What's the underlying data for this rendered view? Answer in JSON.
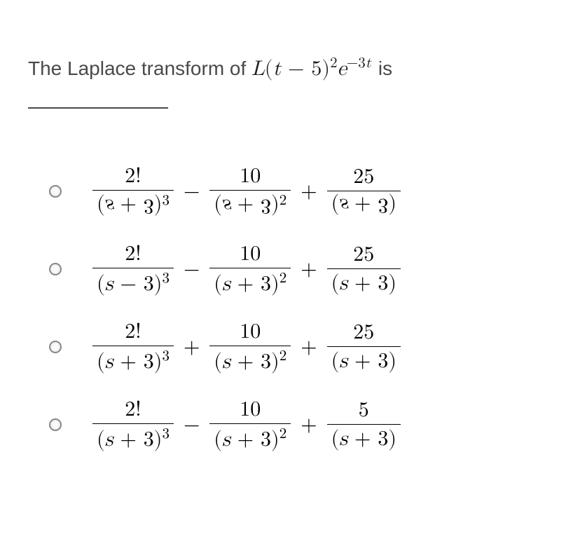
{
  "question": {
    "prefix": "The  Laplace transform of ",
    "math_L": "L",
    "math_open": "(",
    "math_t": "t",
    "math_minus": " − ",
    "math_five": "5",
    "math_close": ")",
    "math_sq": "2",
    "math_e": "e",
    "math_exp_neg": "−3",
    "math_exp_t": "t",
    "suffix": "   is"
  },
  "options": [
    {
      "terms": [
        {
          "num": "2!",
          "den_flip": true,
          "den_var": "s",
          "den_op": "+",
          "den_c": "3",
          "den_close": ")",
          "den_exp": "3"
        },
        {
          "op": "−"
        },
        {
          "num": "10",
          "den_flip": true,
          "den_var": "s",
          "den_op": "+",
          "den_c": "3",
          "den_close": ")",
          "den_exp": "2"
        },
        {
          "op": "+"
        },
        {
          "num": "25",
          "den_flip": true,
          "den_var": "s",
          "den_op": "+",
          "den_c": "3",
          "den_close": ")",
          "den_exp": ""
        }
      ]
    },
    {
      "terms": [
        {
          "num": "2!",
          "den_var": "s",
          "den_op": "−",
          "den_c": "3",
          "den_close": ")",
          "den_exp": "3"
        },
        {
          "op": "−"
        },
        {
          "num": "10",
          "den_var": "s",
          "den_op": "+",
          "den_c": "3",
          "den_close": ")",
          "den_exp": "2"
        },
        {
          "op": "+"
        },
        {
          "num": "25",
          "den_var": "s",
          "den_op": "+",
          "den_c": "3",
          "den_close": ")",
          "den_exp": ""
        }
      ]
    },
    {
      "terms": [
        {
          "num": "2!",
          "den_var": "s",
          "den_op": "+",
          "den_c": "3",
          "den_close": ")",
          "den_exp": "3"
        },
        {
          "op": "+"
        },
        {
          "num": "10",
          "den_var": "s",
          "den_op": "+",
          "den_c": "3",
          "den_close": ")",
          "den_exp": "2"
        },
        {
          "op": "+"
        },
        {
          "num": "25",
          "den_var": "s",
          "den_op": "+",
          "den_c": "3",
          "den_close": ")",
          "den_exp": ""
        }
      ]
    },
    {
      "terms": [
        {
          "num": "2!",
          "den_var": "s",
          "den_op": "+",
          "den_c": "3",
          "den_close": ")",
          "den_exp": "3"
        },
        {
          "op": "−"
        },
        {
          "num": "10",
          "den_var": "s",
          "den_op": "+",
          "den_c": "3",
          "den_close": ")",
          "den_exp": "2"
        },
        {
          "op": "+"
        },
        {
          "num": "5",
          "den_var": "s",
          "den_op": "+",
          "den_c": "3",
          "den_close": ")",
          "den_exp": ""
        }
      ]
    }
  ],
  "colors": {
    "text": "#4a4a4a",
    "math": "#000000",
    "background": "#ffffff"
  },
  "fontsize": {
    "body": 28,
    "math": 30
  }
}
